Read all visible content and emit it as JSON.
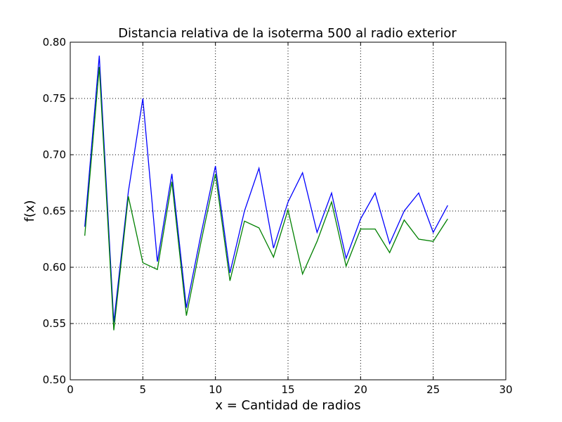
{
  "chart_data": {
    "type": "line",
    "title": "Distancia relativa de la isoterma 500 al radio exterior",
    "xlabel": "x = Cantidad de radios",
    "ylabel": "f(x)",
    "xlim": [
      0,
      30
    ],
    "ylim": [
      0.5,
      0.8
    ],
    "xticks": [
      0,
      5,
      10,
      15,
      20,
      25,
      30
    ],
    "xtick_labels": [
      "0",
      "5",
      "10",
      "15",
      "20",
      "25",
      "30"
    ],
    "yticks": [
      0.5,
      0.55,
      0.6,
      0.65,
      0.7,
      0.75,
      0.8
    ],
    "ytick_labels": [
      "0.50",
      "0.55",
      "0.60",
      "0.65",
      "0.70",
      "0.75",
      "0.80"
    ],
    "grid": true,
    "x": [
      1,
      2,
      3,
      4,
      5,
      6,
      7,
      8,
      9,
      10,
      11,
      12,
      13,
      14,
      15,
      16,
      17,
      18,
      19,
      20,
      21,
      22,
      23,
      24,
      25,
      26
    ],
    "series": [
      {
        "color": "#0000ff",
        "values": [
          0.636,
          0.788,
          0.551,
          0.667,
          0.75,
          0.605,
          0.683,
          0.564,
          0.629,
          0.69,
          0.595,
          0.65,
          0.688,
          0.617,
          0.658,
          0.684,
          0.631,
          0.666,
          0.608,
          0.643,
          0.666,
          0.621,
          0.65,
          0.666,
          0.631,
          0.655
        ]
      },
      {
        "color": "#008000",
        "values": [
          0.628,
          0.778,
          0.544,
          0.663,
          0.604,
          0.598,
          0.676,
          0.557,
          0.622,
          0.683,
          0.588,
          0.641,
          0.635,
          0.609,
          0.651,
          0.594,
          0.623,
          0.658,
          0.601,
          0.634,
          0.634,
          0.613,
          0.642,
          0.625,
          0.623,
          0.643
        ]
      }
    ]
  }
}
